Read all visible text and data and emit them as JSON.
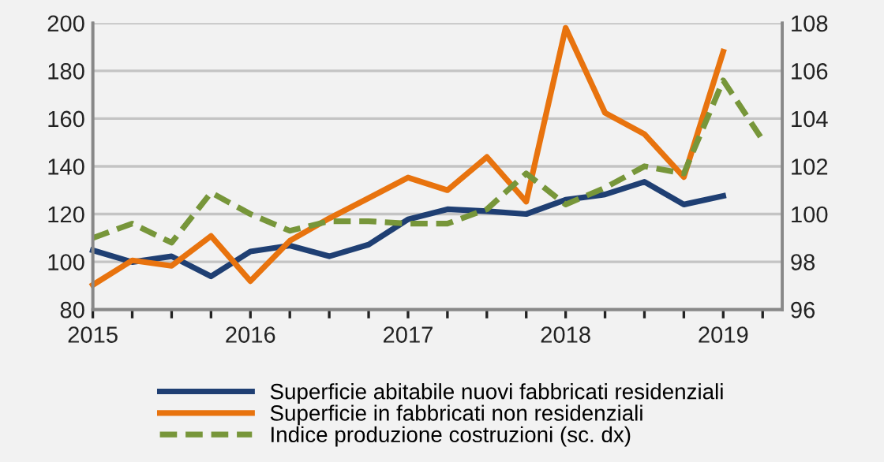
{
  "chart_data": {
    "type": "line",
    "x": [
      2015,
      2015.25,
      2015.5,
      2015.75,
      2016,
      2016.25,
      2016.5,
      2016.75,
      2017,
      2017.25,
      2017.5,
      2017.75,
      2018,
      2018.25,
      2018.5,
      2018.75,
      2019
    ],
    "series": [
      {
        "name": "Superficie abitabile nuovi fabbricati residenziali",
        "color": "#1f3f73",
        "values": [
          104.8,
          99.9,
          102.3,
          93.9,
          104.3,
          106.8,
          102.3,
          107.2,
          117.8,
          122,
          121.2,
          120,
          126,
          128.2,
          133.5,
          124,
          127.6
        ]
      },
      {
        "name": "Superficie in fabbricati non residenziali",
        "color": "#e8730e",
        "values": [
          90.3,
          100.6,
          98.3,
          110.8,
          91.9,
          108.8,
          118.2,
          126.7,
          135.3,
          130,
          143.9,
          125.2,
          198,
          162.4,
          153.5,
          135.5,
          188
        ]
      },
      {
        "name": "Indice produzione costruzioni (sc. dx)",
        "color": "#77963a",
        "axis": "y2",
        "line_style": "dashed",
        "x": [
          2015,
          2015.25,
          2015.5,
          2015.75,
          2016,
          2016.25,
          2016.5,
          2016.75,
          2017,
          2017.25,
          2017.5,
          2017.75,
          2018,
          2018.25,
          2018.5,
          2018.75,
          2019,
          2019.25
        ],
        "values": [
          99.0,
          99.6,
          98.8,
          100.9,
          100.0,
          99.3,
          99.7,
          99.7,
          99.6,
          99.6,
          100.2,
          101.7,
          100.4,
          101.1,
          102.0,
          101.7,
          105.6,
          103.1
        ]
      }
    ],
    "xlim": [
      2015,
      2019.375
    ],
    "xticks": [
      2015,
      {
        "value": 2015.25,
        "label": null
      },
      {
        "value": 2015.5,
        "label": null
      },
      {
        "value": 2015.75,
        "label": null
      },
      2016,
      {
        "value": 2016.25,
        "label": null
      },
      {
        "value": 2016.5,
        "label": null
      },
      {
        "value": 2016.75,
        "label": null
      },
      2017,
      {
        "value": 2017.25,
        "label": null
      },
      {
        "value": 2017.5,
        "label": null
      },
      {
        "value": 2017.75,
        "label": null
      },
      2018,
      {
        "value": 2018.25,
        "label": null
      },
      {
        "value": 2018.5,
        "label": null
      },
      {
        "value": 2018.75,
        "label": null
      },
      2019,
      {
        "value": 2019.25,
        "label": null
      }
    ],
    "ylim": [
      80,
      200
    ],
    "yticks": [
      80,
      100,
      120,
      140,
      160,
      180,
      200
    ],
    "y2lim": [
      96,
      108
    ],
    "y2ticks": [
      96,
      98,
      100,
      102,
      104,
      106,
      108
    ],
    "grid": "y",
    "legend": "bottom",
    "line_style": "solid",
    "marker": "none"
  }
}
